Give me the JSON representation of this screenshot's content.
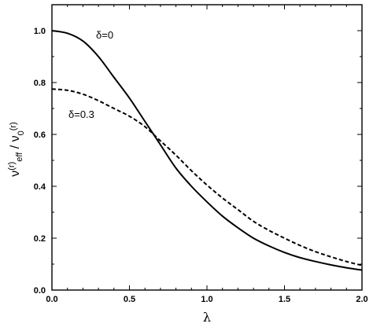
{
  "chart_data": {
    "type": "line",
    "xlabel": "λ",
    "ylabel": "ν(r)eff / ν0(r)",
    "xlim": [
      0.0,
      2.0
    ],
    "ylim": [
      0.0,
      1.1
    ],
    "grid": false,
    "legend": "none",
    "x_tick_labels": [
      "0.0",
      "0.5",
      "1.0",
      "1.5",
      "2.0"
    ],
    "y_tick_labels": [
      "0.0",
      "0.2",
      "0.4",
      "0.6",
      "0.8",
      "1.0"
    ],
    "series": [
      {
        "label": "δ=0",
        "style": "solid",
        "x": [
          0,
          0.1,
          0.2,
          0.3,
          0.4,
          0.5,
          0.6,
          0.7,
          0.8,
          0.9,
          1.0,
          1.1,
          1.2,
          1.3,
          1.4,
          1.5,
          1.6,
          1.7,
          1.8,
          1.9,
          2.0
        ],
        "y": [
          1.0,
          0.99,
          0.96,
          0.9,
          0.82,
          0.74,
          0.65,
          0.56,
          0.47,
          0.4,
          0.34,
          0.285,
          0.24,
          0.2,
          0.17,
          0.145,
          0.125,
          0.11,
          0.097,
          0.086,
          0.077
        ]
      },
      {
        "label": "δ=0.3",
        "style": "dashed",
        "x": [
          0,
          0.1,
          0.2,
          0.3,
          0.4,
          0.5,
          0.6,
          0.7,
          0.8,
          0.9,
          1.0,
          1.1,
          1.2,
          1.3,
          1.4,
          1.5,
          1.6,
          1.7,
          1.8,
          1.9,
          2.0
        ],
        "y": [
          0.775,
          0.77,
          0.755,
          0.73,
          0.7,
          0.67,
          0.63,
          0.575,
          0.52,
          0.46,
          0.405,
          0.355,
          0.31,
          0.265,
          0.23,
          0.2,
          0.172,
          0.148,
          0.128,
          0.11,
          0.095
        ]
      }
    ]
  }
}
